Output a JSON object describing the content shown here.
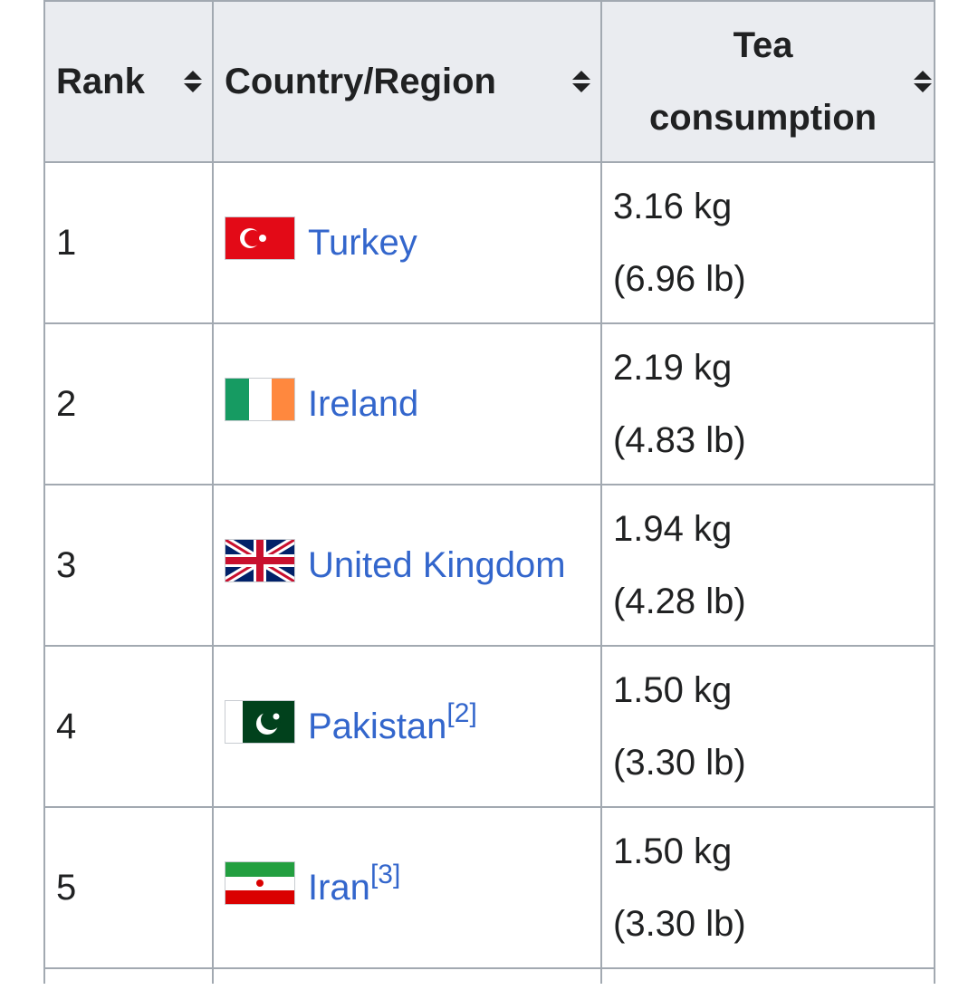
{
  "table": {
    "headers": [
      "Rank",
      "Country/Region",
      "Tea consumption"
    ],
    "rows": [
      {
        "rank": "1",
        "country": "Turkey",
        "tea": [
          "3.16 kg",
          "(6.96 lb)"
        ]
      },
      {
        "rank": "2",
        "country": "Ireland",
        "tea": [
          "2.19 kg",
          "(4.83 lb)"
        ]
      },
      {
        "rank": "3",
        "country": "United Kingdom",
        "tea": [
          "1.94 kg",
          "(4.28 lb)"
        ]
      },
      {
        "rank": "4",
        "country": "Pakistan",
        "ref": "[2]",
        "tea": [
          "1.50 kg",
          "(3.30 lb)"
        ]
      },
      {
        "rank": "5",
        "country": "Iran",
        "ref": "[3]",
        "tea": [
          "1.50 kg",
          "(3.30 lb)"
        ]
      }
    ]
  }
}
